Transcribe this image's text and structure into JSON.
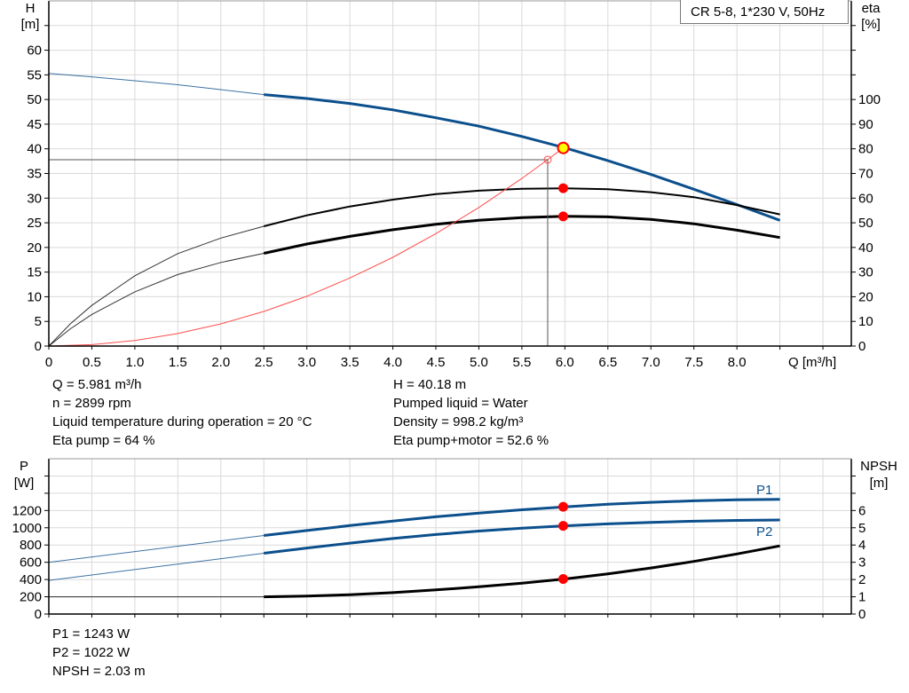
{
  "legend_label": "CR 5-8, 1*230 V, 50Hz",
  "colors": {
    "head": "#0b4f8c",
    "efficiency": "#000000",
    "system_curve": "#ff4d4d",
    "operating_point": "#ff0000",
    "duty_point_fill": "#ffff00",
    "power": "#0b4f8c",
    "npsh": "#000000",
    "grid": "#d9d9d9"
  },
  "info_top": {
    "left": [
      "Q = 5.981 m³/h",
      "n = 2899 rpm",
      "Liquid temperature during operation = 20 °C",
      "Eta pump = 64 %"
    ],
    "right": [
      "H = 40.18 m",
      "Pumped liquid = Water",
      "Density = 998.2 kg/m³",
      "Eta pump+motor = 52.6 %"
    ]
  },
  "info_bottom": [
    "P1 = 1243 W",
    "P2 = 1022 W",
    "NPSH = 2.03 m"
  ],
  "chart_data": [
    {
      "type": "line",
      "ylabel": "H",
      "yunit": "[m]",
      "y2label": "eta",
      "y2unit": "[%]",
      "xlabel": "Q [m³/h]",
      "xlim": [
        0,
        9.33
      ],
      "ylim": [
        0,
        70
      ],
      "y2lim": [
        0,
        140
      ],
      "xticks": [
        "0",
        "0.5",
        "1.0",
        "1.5",
        "2.0",
        "2.5",
        "3.0",
        "3.5",
        "4.0",
        "4.5",
        "5.0",
        "5.5",
        "6.0",
        "6.5",
        "7.0",
        "7.5",
        "8.0"
      ],
      "yticks": [
        0,
        5,
        10,
        15,
        20,
        25,
        30,
        35,
        40,
        45,
        50,
        55,
        60
      ],
      "y2ticks": [
        0,
        10,
        20,
        30,
        40,
        50,
        60,
        70,
        80,
        90,
        100
      ],
      "grid": true,
      "series": [
        {
          "key": "H",
          "axis": "y",
          "color": "#0b4f8c",
          "thin": [
            [
              0,
              55.3
            ],
            [
              0.5,
              54.6
            ],
            [
              1.0,
              53.8
            ],
            [
              1.5,
              53.0
            ],
            [
              2.0,
              52.0
            ],
            [
              2.5,
              51.0
            ]
          ],
          "thick": [
            [
              2.5,
              51.0
            ],
            [
              3.0,
              50.2
            ],
            [
              3.5,
              49.2
            ],
            [
              4.0,
              47.9
            ],
            [
              4.5,
              46.3
            ],
            [
              5.0,
              44.6
            ],
            [
              5.5,
              42.5
            ],
            [
              6.0,
              40.2
            ],
            [
              6.5,
              37.6
            ],
            [
              7.0,
              34.8
            ],
            [
              7.5,
              31.8
            ],
            [
              8.0,
              28.7
            ],
            [
              8.5,
              25.5
            ]
          ]
        },
        {
          "key": "eta_pump",
          "axis": "y2",
          "color": "#000000",
          "thin": [
            [
              0,
              0
            ],
            [
              0.25,
              9
            ],
            [
              0.5,
              16.5
            ],
            [
              1.0,
              28.5
            ],
            [
              1.5,
              37.5
            ],
            [
              2.0,
              43.8
            ],
            [
              2.5,
              48.6
            ]
          ],
          "thick": [
            [
              2.5,
              48.6
            ],
            [
              3.0,
              53
            ],
            [
              3.5,
              56.6
            ],
            [
              4.0,
              59.4
            ],
            [
              4.5,
              61.6
            ],
            [
              5.0,
              63
            ],
            [
              5.5,
              63.8
            ],
            [
              6.0,
              64
            ],
            [
              6.5,
              63.6
            ],
            [
              7.0,
              62.4
            ],
            [
              7.5,
              60.4
            ],
            [
              8.0,
              57.2
            ],
            [
              8.5,
              53.4
            ]
          ]
        },
        {
          "key": "eta_pump_motor",
          "axis": "y2",
          "color": "#000000",
          "thin": [
            [
              0,
              0
            ],
            [
              0.25,
              7
            ],
            [
              0.5,
              12.8
            ],
            [
              1.0,
              22
            ],
            [
              1.5,
              29
            ],
            [
              2.0,
              33.9
            ],
            [
              2.5,
              37.6
            ]
          ],
          "thick": [
            [
              2.5,
              37.6
            ],
            [
              3.0,
              41.4
            ],
            [
              3.5,
              44.5
            ],
            [
              4.0,
              47.2
            ],
            [
              4.5,
              49.4
            ],
            [
              5.0,
              51
            ],
            [
              5.5,
              52.1
            ],
            [
              6.0,
              52.6
            ],
            [
              6.5,
              52.4
            ],
            [
              7.0,
              51.4
            ],
            [
              7.5,
              49.6
            ],
            [
              8.0,
              47
            ],
            [
              8.5,
              44
            ]
          ]
        },
        {
          "key": "system_curve",
          "axis": "y",
          "color": "#ff4d4d",
          "points": [
            [
              0,
              0
            ],
            [
              0.5,
              0.28
            ],
            [
              1.0,
              1.12
            ],
            [
              1.5,
              2.53
            ],
            [
              2.0,
              4.49
            ],
            [
              2.5,
              7.02
            ],
            [
              3.0,
              10.1
            ],
            [
              3.5,
              13.8
            ],
            [
              4.0,
              18.0
            ],
            [
              4.5,
              22.8
            ],
            [
              5.0,
              28.1
            ],
            [
              5.5,
              34.0
            ],
            [
              5.8,
              37.8
            ],
            [
              5.981,
              40.18
            ]
          ]
        }
      ],
      "duty_point": {
        "q": 5.981,
        "h": 40.18
      },
      "marked_point": {
        "q": 5.8,
        "h": 37.8
      },
      "operating_points": [
        {
          "q": 5.981,
          "y": 64,
          "axis": "y2"
        },
        {
          "q": 5.981,
          "y": 52.6,
          "axis": "y2"
        }
      ]
    },
    {
      "type": "line",
      "ylabel": "P",
      "yunit": "[W]",
      "y2label": "NPSH",
      "y2unit": "[m]",
      "xlim": [
        0,
        9.33
      ],
      "ylim": [
        0,
        1800
      ],
      "y2lim": [
        0,
        9
      ],
      "yticks": [
        0,
        200,
        400,
        600,
        800,
        1000,
        1200
      ],
      "y2ticks": [
        0,
        1,
        2,
        3,
        4,
        5,
        6
      ],
      "grid": true,
      "series": [
        {
          "name": "P1",
          "key": "P1",
          "axis": "y",
          "color": "#0b4f8c",
          "thin": [
            [
              0,
              600
            ],
            [
              2.5,
              910
            ]
          ],
          "thick": [
            [
              2.5,
              910
            ],
            [
              3.0,
              968
            ],
            [
              3.5,
              1025
            ],
            [
              4.0,
              1078
            ],
            [
              4.5,
              1127
            ],
            [
              5.0,
              1170
            ],
            [
              5.5,
              1209
            ],
            [
              6.0,
              1243
            ],
            [
              6.5,
              1272
            ],
            [
              7.0,
              1295
            ],
            [
              7.5,
              1312
            ],
            [
              8.0,
              1324
            ],
            [
              8.5,
              1330
            ]
          ]
        },
        {
          "name": "P2",
          "key": "P2",
          "axis": "y",
          "color": "#0b4f8c",
          "thin": [
            [
              0,
              390
            ],
            [
              2.5,
              705
            ]
          ],
          "thick": [
            [
              2.5,
              705
            ],
            [
              3.0,
              765
            ],
            [
              3.5,
              822
            ],
            [
              4.0,
              875
            ],
            [
              4.5,
              922
            ],
            [
              5.0,
              962
            ],
            [
              5.5,
              995
            ],
            [
              6.0,
              1022
            ],
            [
              6.5,
              1045
            ],
            [
              7.0,
              1063
            ],
            [
              7.5,
              1076
            ],
            [
              8.0,
              1085
            ],
            [
              8.5,
              1090
            ]
          ]
        },
        {
          "key": "NPSH",
          "axis": "y2",
          "color": "#000000",
          "thin": [
            [
              0,
              1.0
            ],
            [
              2.5,
              1.0
            ]
          ],
          "thick": [
            [
              2.5,
              1.0
            ],
            [
              3.0,
              1.04
            ],
            [
              3.5,
              1.12
            ],
            [
              4.0,
              1.24
            ],
            [
              4.5,
              1.4
            ],
            [
              5.0,
              1.58
            ],
            [
              5.5,
              1.79
            ],
            [
              6.0,
              2.03
            ],
            [
              6.5,
              2.33
            ],
            [
              7.0,
              2.67
            ],
            [
              7.5,
              3.05
            ],
            [
              8.0,
              3.48
            ],
            [
              8.5,
              3.95
            ]
          ]
        }
      ],
      "operating_points": [
        {
          "q": 5.981,
          "y": 1243,
          "axis": "y"
        },
        {
          "q": 5.981,
          "y": 1022,
          "axis": "y"
        },
        {
          "q": 5.981,
          "y": 2.03,
          "axis": "y2"
        }
      ]
    }
  ]
}
